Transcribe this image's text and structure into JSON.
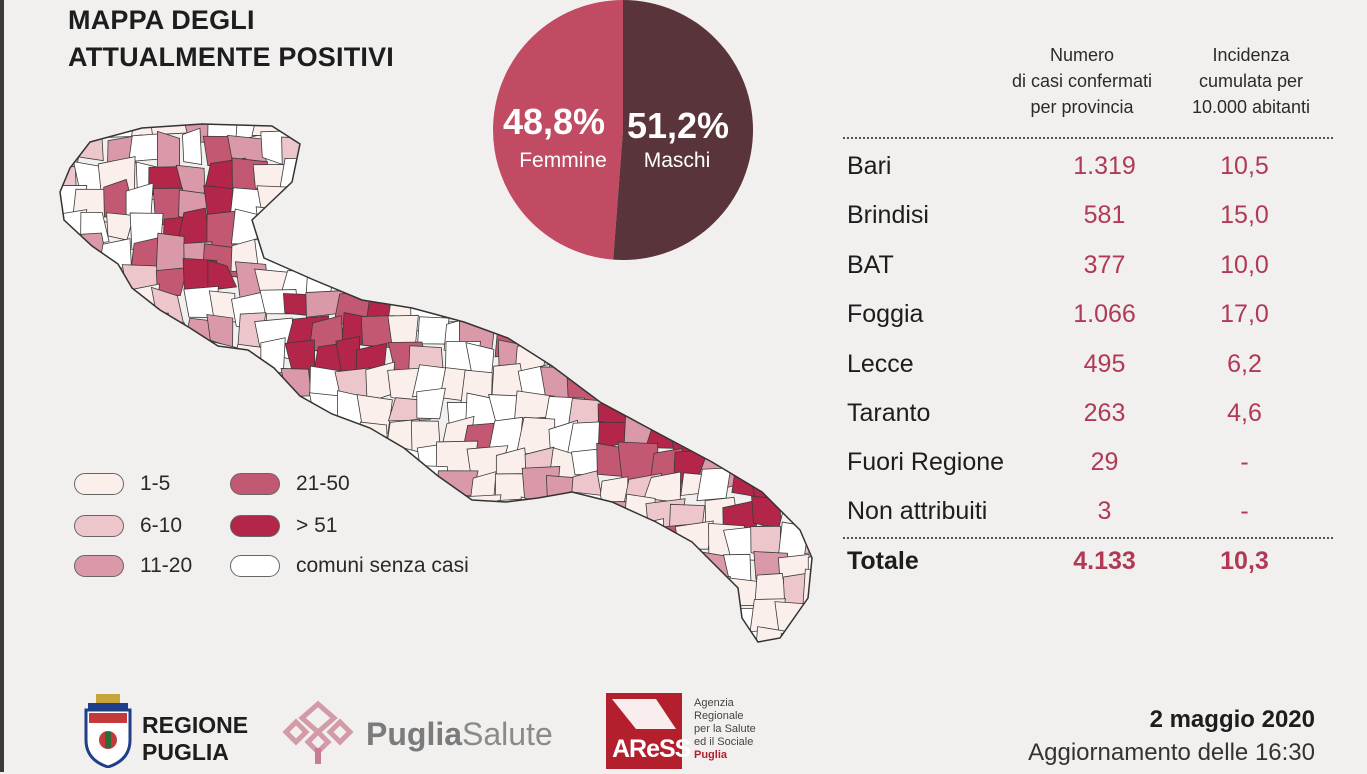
{
  "title": {
    "line1": "MAPPA DEGLI",
    "line2": "ATTUALMENTE POSITIVI"
  },
  "gender": {
    "female": {
      "percent": "48,8%",
      "label": "Femmine",
      "value": 48.8,
      "color": "#c24b64"
    },
    "male": {
      "percent": "51,2%",
      "label": "Maschi",
      "value": 51.2,
      "color": "#5a343b"
    }
  },
  "legend": [
    {
      "label": "1-5",
      "color": "#fbefeb"
    },
    {
      "label": "6-10",
      "color": "#edc6cb"
    },
    {
      "label": "11-20",
      "color": "#d999a8"
    },
    {
      "label": "21-50",
      "color": "#c35872"
    },
    {
      "label": "> 51",
      "color": "#b32549"
    },
    {
      "label": "comuni senza casi",
      "color": "#ffffff"
    }
  ],
  "table": {
    "header_cases": "Numero di casi confermati per provincia",
    "header_cases_lines": [
      "Numero",
      "di casi confermati",
      "per provincia"
    ],
    "header_incidence_lines": [
      "Incidenza",
      "cumulata per",
      "10.000 abitanti"
    ],
    "rows": [
      {
        "name": "Bari",
        "cases": "1.319",
        "incidence": "10,5"
      },
      {
        "name": "Brindisi",
        "cases": "581",
        "incidence": "15,0"
      },
      {
        "name": "BAT",
        "cases": "377",
        "incidence": "10,0"
      },
      {
        "name": "Foggia",
        "cases": "1.066",
        "incidence": "17,0"
      },
      {
        "name": "Lecce",
        "cases": "495",
        "incidence": "6,2"
      },
      {
        "name": "Taranto",
        "cases": "263",
        "incidence": "4,6"
      },
      {
        "name": "Fuori Regione",
        "cases": "29",
        "incidence": "-"
      },
      {
        "name": "Non attribuiti",
        "cases": "3",
        "incidence": "-"
      }
    ],
    "total": {
      "name": "Totale",
      "cases": "4.133",
      "incidence": "10,3"
    }
  },
  "logos": {
    "regione": [
      "REGIONE",
      "PUGLIA"
    ],
    "puglia_salute": {
      "part1": "Puglia",
      "part2": "Salute"
    },
    "aress": {
      "mark": "AReSS",
      "lines": [
        "Agenzia",
        "Regionale",
        "per la Salute",
        "ed il Sociale"
      ],
      "region": "Puglia"
    }
  },
  "date": {
    "line1": "2 maggio 2020",
    "line2": "Aggiornamento delle 16:30"
  },
  "colors": {
    "accent": "#b03a56",
    "background": "#f2f0ee"
  }
}
